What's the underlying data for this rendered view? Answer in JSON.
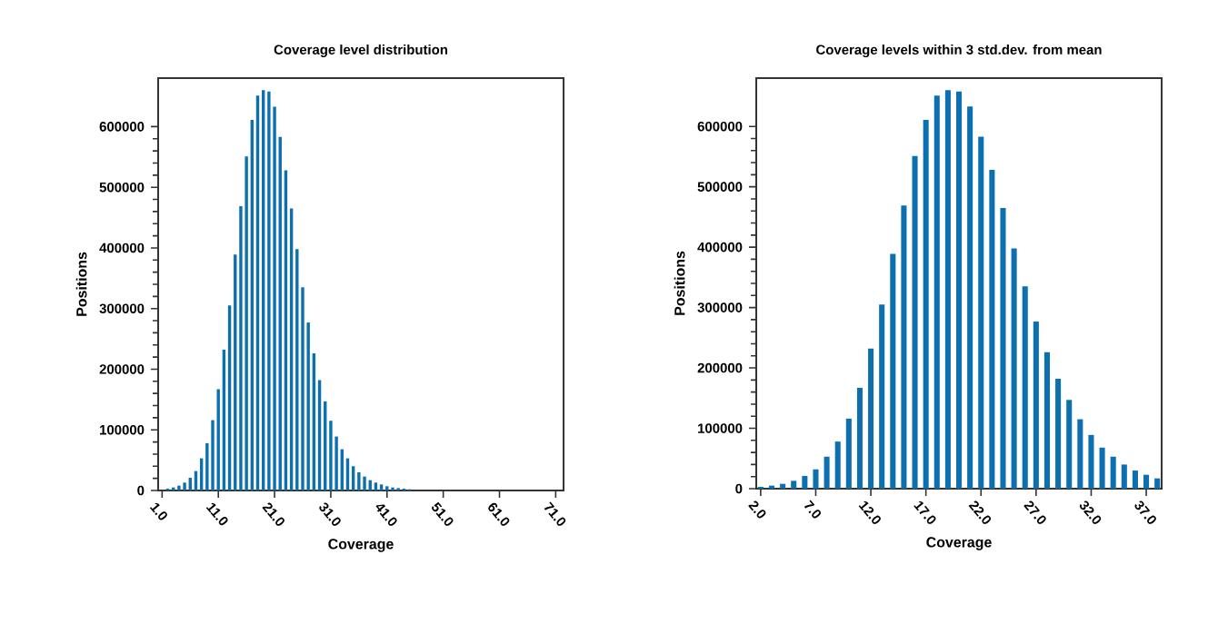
{
  "chart_data": [
    {
      "type": "bar",
      "title": "Coverage level distribution",
      "xlabel": "Coverage",
      "ylabel": "Positions",
      "color": "#0b6fb0",
      "x": [
        2,
        3,
        4,
        5,
        6,
        7,
        8,
        9,
        10,
        11,
        12,
        13,
        14,
        15,
        16,
        17,
        18,
        19,
        20,
        21,
        22,
        23,
        24,
        25,
        26,
        27,
        28,
        29,
        30,
        31,
        32,
        33,
        34,
        35,
        36,
        37,
        38,
        39,
        40,
        41,
        42,
        43,
        44,
        45
      ],
      "values": [
        3000,
        5000,
        8000,
        13000,
        21000,
        32000,
        53000,
        78000,
        116000,
        167000,
        232000,
        305000,
        389000,
        469000,
        551000,
        611000,
        651000,
        660000,
        658000,
        633000,
        583000,
        528000,
        465000,
        398000,
        335000,
        277000,
        226000,
        182000,
        147000,
        115000,
        89000,
        68000,
        53000,
        40000,
        30000,
        23000,
        17000,
        13000,
        10000,
        7000,
        5000,
        4000,
        3000,
        2000
      ],
      "xlim": [
        0.3,
        72.4
      ],
      "ylim": [
        0,
        680000
      ],
      "xticks": [
        {
          "value": 1,
          "label": "1.0"
        },
        {
          "value": 11,
          "label": "11.0"
        },
        {
          "value": 21,
          "label": "21.0"
        },
        {
          "value": 31,
          "label": "31.0"
        },
        {
          "value": 41,
          "label": "41.0"
        },
        {
          "value": 51,
          "label": "51.0"
        },
        {
          "value": 61,
          "label": "61.0"
        },
        {
          "value": 71,
          "label": "71.0"
        }
      ],
      "yticks": [
        0,
        100000,
        200000,
        300000,
        400000,
        500000,
        600000
      ]
    },
    {
      "type": "bar",
      "title": "Coverage levels within 3 std.dev. from mean",
      "xlabel": "Coverage",
      "ylabel": "Positions",
      "color": "#0b6fb0",
      "x": [
        2,
        3,
        4,
        5,
        6,
        7,
        8,
        9,
        10,
        11,
        12,
        13,
        14,
        15,
        16,
        17,
        18,
        19,
        20,
        21,
        22,
        23,
        24,
        25,
        26,
        27,
        28,
        29,
        30,
        31,
        32,
        33,
        34,
        35,
        36,
        37,
        38
      ],
      "values": [
        3000,
        5000,
        8000,
        13000,
        21000,
        32000,
        53000,
        78000,
        116000,
        167000,
        232000,
        305000,
        389000,
        469000,
        551000,
        611000,
        651000,
        660000,
        658000,
        633000,
        583000,
        528000,
        465000,
        398000,
        335000,
        277000,
        226000,
        182000,
        147000,
        115000,
        89000,
        68000,
        53000,
        40000,
        30000,
        23000,
        17000
      ],
      "xlim": [
        1.6,
        38.4
      ],
      "ylim": [
        0,
        680000
      ],
      "xticks": [
        {
          "value": 2,
          "label": "2.0"
        },
        {
          "value": 7,
          "label": "7.0"
        },
        {
          "value": 12,
          "label": "12.0"
        },
        {
          "value": 17,
          "label": "17.0"
        },
        {
          "value": 22,
          "label": "22.0"
        },
        {
          "value": 27,
          "label": "27.0"
        },
        {
          "value": 32,
          "label": "32.0"
        },
        {
          "value": 37,
          "label": "37.0"
        }
      ],
      "yticks": [
        0,
        100000,
        200000,
        300000,
        400000,
        500000,
        600000
      ]
    }
  ]
}
